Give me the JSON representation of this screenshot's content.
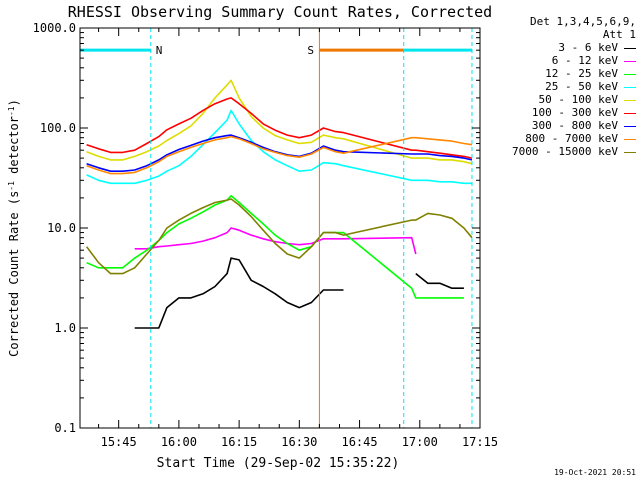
{
  "chart_data": {
    "type": "line",
    "title": "RHESSI Observing Summary Count Rates, Corrected",
    "xlabel": "Start Time (29-Sep-02 15:35:22)",
    "ylabel": "Corrected Count Rate (s⁻¹ detector⁻¹)",
    "y_scale": "log",
    "ylim": [
      0.1,
      1000.0
    ],
    "y_ticks": [
      "0.1",
      "1.0",
      "10.0",
      "100.0",
      "1000.0"
    ],
    "xlim": [
      "15:35:22",
      "17:15"
    ],
    "x_ticks": [
      "15:45",
      "16:00",
      "16:15",
      "16:30",
      "16:45",
      "17:00",
      "17:15"
    ],
    "legend_title": [
      "Det 1,3,4,5,6,9,",
      "Att 1"
    ],
    "legend_position": "right",
    "grid": false,
    "timestamp": "19-Oct-2021 20:51",
    "flags": [
      {
        "label": "N",
        "start": "15:35:22",
        "end": "15:53",
        "level": 600,
        "color": "#00e5ee"
      },
      {
        "label": "S",
        "start": "16:35",
        "end": "16:56",
        "level": 600,
        "color": "#ee7700"
      },
      {
        "label": "",
        "start": "16:56",
        "end": "17:13",
        "level": 600,
        "color": "#00e5ee"
      }
    ],
    "markers": [
      {
        "time": "15:35:22",
        "color": "#00e5ee",
        "style": "solid"
      },
      {
        "time": "15:53",
        "color": "#00e5ee",
        "style": "dashed"
      },
      {
        "time": "16:35",
        "color": "#ee7700",
        "style": "solid"
      },
      {
        "time": "16:56",
        "color": "#00e5ee",
        "style": "dashed"
      },
      {
        "time": "17:13",
        "color": "#00e5ee",
        "style": "dashed"
      }
    ],
    "series": [
      {
        "name": "3 - 6 keV",
        "color": "#000000",
        "x": [
          "15:49",
          "15:52",
          "15:55",
          "15:57",
          "16:00",
          "16:03",
          "16:06",
          "16:09",
          "16:12",
          "16:13",
          "16:15",
          "16:18",
          "16:21",
          "16:24",
          "16:27",
          "16:30",
          "16:33",
          "16:36",
          "16:39",
          "16:41",
          "16:58",
          "16:59",
          "17:02",
          "17:05",
          "17:08",
          "17:11",
          "17:13"
        ],
        "y": [
          1.0,
          1.0,
          1.0,
          1.6,
          2.0,
          2.0,
          2.2,
          2.6,
          3.5,
          5.0,
          4.8,
          3.0,
          2.6,
          2.2,
          1.8,
          1.6,
          1.8,
          2.4,
          2.4,
          2.4,
          null,
          3.5,
          2.8,
          2.8,
          2.5,
          2.5,
          null
        ]
      },
      {
        "name": "6 - 12 keV",
        "color": "#ff00ff",
        "x": [
          "15:49",
          "15:52",
          "15:55",
          "15:57",
          "16:00",
          "16:03",
          "16:06",
          "16:09",
          "16:12",
          "16:13",
          "16:15",
          "16:18",
          "16:21",
          "16:24",
          "16:27",
          "16:30",
          "16:33",
          "16:36",
          "16:39",
          "16:41",
          "16:58",
          "16:59"
        ],
        "y": [
          6.2,
          6.2,
          6.5,
          6.6,
          6.8,
          7.0,
          7.4,
          8.0,
          9.0,
          10.0,
          9.5,
          8.5,
          7.8,
          7.3,
          7.0,
          6.8,
          7.0,
          7.8,
          7.8,
          7.8,
          8.0,
          5.5
        ]
      },
      {
        "name": "12 - 25 keV",
        "color": "#00ff00",
        "x": [
          "15:37",
          "15:40",
          "15:43",
          "15:46",
          "15:49",
          "15:52",
          "15:55",
          "15:57",
          "16:00",
          "16:03",
          "16:06",
          "16:09",
          "16:12",
          "16:13",
          "16:15",
          "16:18",
          "16:21",
          "16:24",
          "16:27",
          "16:30",
          "16:33",
          "16:36",
          "16:39",
          "16:41",
          "16:58",
          "16:59",
          "17:02",
          "17:05",
          "17:08",
          "17:11",
          "17:13"
        ],
        "y": [
          4.5,
          4.0,
          4.0,
          4.0,
          5.0,
          6.0,
          7.5,
          9.0,
          11.0,
          12.5,
          14.5,
          17.0,
          19.0,
          21.0,
          18.0,
          14.0,
          11.0,
          8.5,
          7.0,
          6.0,
          6.5,
          9.0,
          9.0,
          9.0,
          2.5,
          2.0,
          2.0,
          2.0,
          2.0,
          2.0,
          null
        ]
      },
      {
        "name": "25 - 50 keV",
        "color": "#00ffff",
        "x": [
          "15:37",
          "15:40",
          "15:43",
          "15:46",
          "15:49",
          "15:52",
          "15:55",
          "15:57",
          "16:00",
          "16:03",
          "16:06",
          "16:09",
          "16:12",
          "16:13",
          "16:15",
          "16:18",
          "16:21",
          "16:24",
          "16:27",
          "16:30",
          "16:33",
          "16:36",
          "16:39",
          "16:41",
          "16:58",
          "16:59",
          "17:02",
          "17:05",
          "17:08",
          "17:11",
          "17:13"
        ],
        "y": [
          34,
          30,
          28,
          28,
          28,
          30,
          33,
          37,
          42,
          52,
          68,
          90,
          120,
          150,
          110,
          75,
          58,
          48,
          42,
          37,
          38,
          45,
          44,
          42,
          30,
          30,
          30,
          29,
          29,
          28,
          28
        ]
      },
      {
        "name": "50 - 100 keV",
        "color": "#dddd00",
        "x": [
          "15:37",
          "15:40",
          "15:43",
          "15:46",
          "15:49",
          "15:52",
          "15:55",
          "15:57",
          "16:00",
          "16:03",
          "16:06",
          "16:09",
          "16:12",
          "16:13",
          "16:15",
          "16:18",
          "16:21",
          "16:24",
          "16:27",
          "16:30",
          "16:33",
          "16:36",
          "16:39",
          "16:41",
          "16:58",
          "16:59",
          "17:02",
          "17:05",
          "17:08",
          "17:11",
          "17:13"
        ],
        "y": [
          58,
          52,
          48,
          48,
          52,
          58,
          66,
          75,
          88,
          105,
          140,
          200,
          270,
          300,
          200,
          130,
          100,
          84,
          76,
          70,
          72,
          85,
          80,
          78,
          50,
          50,
          50,
          48,
          48,
          46,
          44
        ]
      },
      {
        "name": "100 - 300 keV",
        "color": "#ff0000",
        "x": [
          "15:37",
          "15:40",
          "15:43",
          "15:46",
          "15:49",
          "15:52",
          "15:55",
          "15:57",
          "16:00",
          "16:03",
          "16:06",
          "16:09",
          "16:12",
          "16:13",
          "16:15",
          "16:18",
          "16:21",
          "16:24",
          "16:27",
          "16:30",
          "16:33",
          "16:36",
          "16:39",
          "16:41",
          "16:58",
          "16:59",
          "17:02",
          "17:05",
          "17:08",
          "17:11",
          "17:13"
        ],
        "y": [
          68,
          62,
          57,
          57,
          60,
          70,
          82,
          96,
          110,
          125,
          150,
          175,
          195,
          200,
          175,
          140,
          110,
          95,
          85,
          80,
          85,
          100,
          92,
          90,
          60,
          60,
          58,
          56,
          54,
          52,
          50
        ]
      },
      {
        "name": "300 - 800 keV",
        "color": "#0000ff",
        "x": [
          "15:37",
          "15:40",
          "15:43",
          "15:46",
          "15:49",
          "15:52",
          "15:55",
          "15:57",
          "16:00",
          "16:03",
          "16:06",
          "16:09",
          "16:12",
          "16:13",
          "16:15",
          "16:18",
          "16:21",
          "16:24",
          "16:27",
          "16:30",
          "16:33",
          "16:36",
          "16:39",
          "16:41",
          "16:58",
          "16:59",
          "17:02",
          "17:05",
          "17:08",
          "17:11",
          "17:13"
        ],
        "y": [
          44,
          40,
          37,
          37,
          38,
          42,
          48,
          54,
          61,
          67,
          74,
          80,
          84,
          85,
          80,
          72,
          64,
          58,
          54,
          52,
          56,
          66,
          60,
          58,
          55,
          55,
          55,
          53,
          52,
          50,
          48
        ]
      },
      {
        "name": "800 - 7000 keV",
        "color": "#ff8800",
        "x": [
          "15:37",
          "15:40",
          "15:43",
          "15:46",
          "15:49",
          "15:52",
          "15:55",
          "15:57",
          "16:00",
          "16:03",
          "16:06",
          "16:09",
          "16:12",
          "16:13",
          "16:15",
          "16:18",
          "16:21",
          "16:24",
          "16:27",
          "16:30",
          "16:33",
          "16:36",
          "16:39",
          "16:41",
          "16:58",
          "16:59",
          "17:02",
          "17:05",
          "17:08",
          "17:11",
          "17:13"
        ],
        "y": [
          42,
          38,
          35,
          35,
          36,
          40,
          46,
          52,
          58,
          64,
          70,
          76,
          80,
          82,
          78,
          70,
          62,
          57,
          53,
          51,
          55,
          64,
          58,
          56,
          80,
          80,
          78,
          76,
          74,
          70,
          68
        ]
      },
      {
        "name": "7000 - 15000 keV",
        "color": "#808000",
        "x": [
          "15:37",
          "15:40",
          "15:43",
          "15:46",
          "15:49",
          "15:52",
          "15:55",
          "15:57",
          "16:00",
          "16:03",
          "16:06",
          "16:09",
          "16:12",
          "16:13",
          "16:15",
          "16:18",
          "16:21",
          "16:24",
          "16:27",
          "16:30",
          "16:33",
          "16:36",
          "16:39",
          "16:41",
          "16:58",
          "16:59",
          "17:02",
          "17:05",
          "17:08",
          "17:11",
          "17:13"
        ],
        "y": [
          6.5,
          4.5,
          3.5,
          3.5,
          4.0,
          5.5,
          7.5,
          10.0,
          12.0,
          14.0,
          16.0,
          18.0,
          19.0,
          19.5,
          17.0,
          13.0,
          9.5,
          7.0,
          5.5,
          5.0,
          6.5,
          9.0,
          9.0,
          8.5,
          12.0,
          12.0,
          14.0,
          13.5,
          12.5,
          10.0,
          8.0
        ]
      }
    ]
  }
}
